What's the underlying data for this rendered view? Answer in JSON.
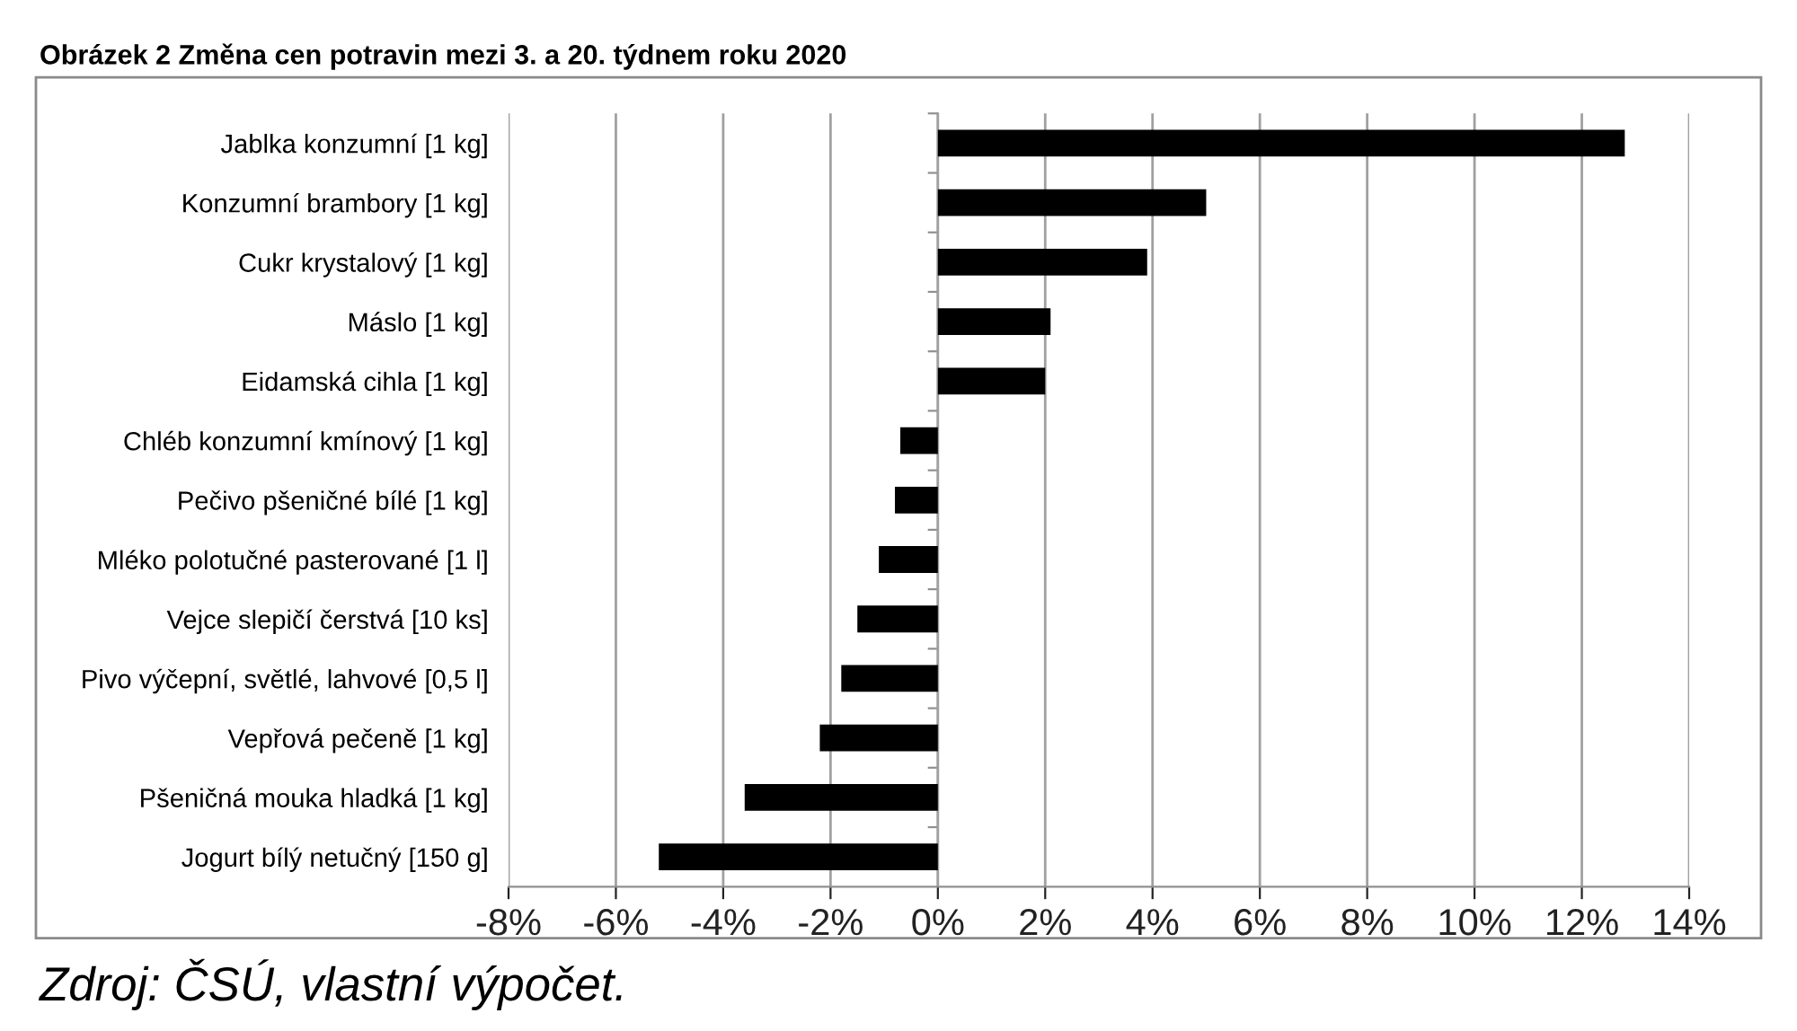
{
  "chart_data": {
    "type": "bar",
    "orientation": "horizontal",
    "title": "Obrázek 2 Změna cen potravin mezi 3. a 20. týdnem roku 2020",
    "categories": [
      "Jablka konzumní [1 kg]",
      "Konzumní brambory [1 kg]",
      "Cukr krystalový [1 kg]",
      "Máslo [1 kg]",
      "Eidamská cihla [1 kg]",
      "Chléb konzumní kmínový [1 kg]",
      "Pečivo pšeničné bílé [1 kg]",
      "Mléko polotučné pasterované [1 l]",
      "Vejce slepičí čerstvá [10 ks]",
      "Pivo výčepní, světlé, lahvové [0,5 l]",
      "Vepřová pečeně [1 kg]",
      "Pšeničná mouka hladká [1 kg]",
      "Jogurt bílý netučný [150 g]"
    ],
    "values": [
      12.8,
      5.0,
      3.9,
      2.1,
      2.0,
      -0.7,
      -0.8,
      -1.1,
      -1.5,
      -1.8,
      -2.2,
      -3.6,
      -5.2
    ],
    "color": "#000000",
    "xlim": [
      -8,
      14
    ],
    "xticks": [
      {
        "value": -8,
        "label": "-8%"
      },
      {
        "value": -6,
        "label": "-6%"
      },
      {
        "value": -4,
        "label": "-4%"
      },
      {
        "value": -2,
        "label": "-2%"
      },
      {
        "value": 0,
        "label": "0%"
      },
      {
        "value": 2,
        "label": "2%"
      },
      {
        "value": 4,
        "label": "4%"
      },
      {
        "value": 6,
        "label": "6%"
      },
      {
        "value": 8,
        "label": "8%"
      },
      {
        "value": 10,
        "label": "10%"
      },
      {
        "value": 12,
        "label": "12%"
      },
      {
        "value": 14,
        "label": "14%"
      }
    ],
    "grid": "x",
    "annotations": [
      "Zdroj: ČSÚ, vlastní výpočet."
    ]
  }
}
